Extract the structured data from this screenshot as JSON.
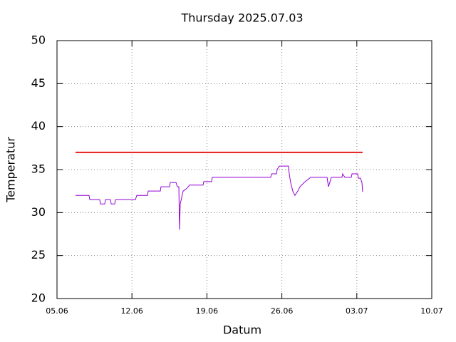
{
  "chart_data": {
    "type": "line",
    "title": "Thursday 2025.07.03",
    "x_label": "Datum",
    "y_label": "Temperatur",
    "xlim": [
      0,
      35
    ],
    "xticks": [
      {
        "value": 0,
        "label": "05.06"
      },
      {
        "value": 7,
        "label": "12.06"
      },
      {
        "value": 14,
        "label": "19.06"
      },
      {
        "value": 21,
        "label": "26.06"
      },
      {
        "value": 28,
        "label": "03.07"
      },
      {
        "value": 35,
        "label": "10.07"
      }
    ],
    "ylim": [
      20,
      50
    ],
    "yticks": [
      20,
      25,
      30,
      35,
      40,
      45,
      50
    ],
    "grid": true,
    "series": [
      {
        "color": "#e41a1c",
        "x": [
          1.73,
          28.54
        ],
        "values": [
          37,
          37
        ]
      },
      {
        "color": "#9400d3",
        "x": [
          1.73,
          2.99,
          3.06,
          3.99,
          4.06,
          4.46,
          4.52,
          4.99,
          5.06,
          5.39,
          5.46,
          7.32,
          7.45,
          8.45,
          8.52,
          9.65,
          9.71,
          10.51,
          10.58,
          11.11,
          11.24,
          11.38,
          11.44,
          11.51,
          11.78,
          12.11,
          12.38,
          13.64,
          13.71,
          14.44,
          14.5,
          19.96,
          20.03,
          20.49,
          20.56,
          20.76,
          21.62,
          21.69,
          21.82,
          22.02,
          22.22,
          22.49,
          22.69,
          23.09,
          23.69,
          25.22,
          25.35,
          25.62,
          26.61,
          26.68,
          26.88,
          27.48,
          27.55,
          28.08,
          28.14,
          28.34,
          28.48,
          28.54
        ],
        "values": [
          32,
          32,
          31.5,
          31.5,
          31,
          31,
          31.5,
          31.5,
          31,
          31,
          31.5,
          31.5,
          32,
          32,
          32.5,
          32.5,
          33,
          33,
          33.5,
          33.5,
          33,
          33,
          28,
          31,
          32.5,
          32.8,
          33.2,
          33.2,
          33.6,
          33.6,
          34.1,
          34.1,
          34.5,
          34.5,
          35,
          35.4,
          35.4,
          34.5,
          33.5,
          32.5,
          32,
          32.5,
          33,
          33.5,
          34.1,
          34.1,
          33,
          34.1,
          34.1,
          34.5,
          34.1,
          34.1,
          34.5,
          34.5,
          34,
          34,
          33.5,
          32.4
        ]
      }
    ]
  }
}
